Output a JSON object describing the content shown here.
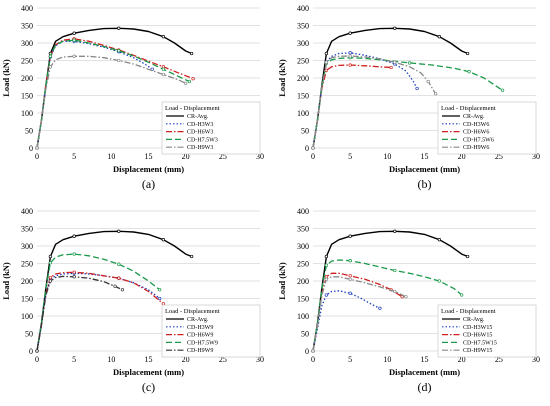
{
  "chart_data": [
    {
      "type": "line",
      "panel_label": "(a)",
      "xlabel": "Displacement (mm)",
      "ylabel": "Load (kN)",
      "xlim": [
        0,
        30
      ],
      "ylim": [
        0,
        400
      ],
      "xticks": [
        "0",
        "5",
        "10",
        "15",
        "20",
        "25",
        "30"
      ],
      "yticks": [
        "0",
        "50",
        "100",
        "150",
        "200",
        "250",
        "300",
        "350",
        "400"
      ],
      "legend_title": "Load - Displacement",
      "legend_position": "lower-right",
      "grid": "horizontal",
      "series": [
        {
          "name": "CR-Avg.",
          "color": "#000000",
          "dash": "solid",
          "x": [
            0,
            0.6,
            1.2,
            1.8,
            2.5,
            3.5,
            5,
            7,
            9,
            11,
            13,
            15,
            17,
            18.5,
            20,
            20.8
          ],
          "y": [
            0,
            80,
            180,
            270,
            305,
            318,
            328,
            336,
            341,
            342,
            340,
            333,
            318,
            300,
            277,
            270
          ]
        },
        {
          "name": "CD-H3W3",
          "color": "#1f3fbf",
          "dash": "dot",
          "x": [
            0,
            0.6,
            1.2,
            1.8,
            2.5,
            3.5,
            5,
            7,
            9,
            11,
            13,
            14.5,
            15.5
          ],
          "y": [
            0,
            80,
            180,
            260,
            292,
            305,
            305,
            298,
            288,
            275,
            258,
            240,
            225
          ]
        },
        {
          "name": "CD-H6W3",
          "color": "#d02020",
          "dash": "dashdot",
          "x": [
            0,
            0.6,
            1.2,
            1.8,
            2.5,
            3.5,
            5,
            7,
            9,
            11,
            13,
            15,
            17,
            19,
            21
          ],
          "y": [
            0,
            80,
            180,
            262,
            295,
            308,
            312,
            305,
            293,
            280,
            265,
            248,
            232,
            215,
            198
          ]
        },
        {
          "name": "CD-H7.5W3",
          "color": "#1a9a4a",
          "dash": "dash",
          "x": [
            0,
            0.6,
            1.2,
            1.8,
            2.5,
            3.5,
            5,
            7,
            9,
            11,
            13,
            15,
            17,
            19,
            20.5
          ],
          "y": [
            0,
            80,
            180,
            262,
            295,
            305,
            308,
            300,
            290,
            278,
            263,
            245,
            225,
            205,
            190
          ]
        },
        {
          "name": "CD-H9W3",
          "color": "#888888",
          "dash": "dashdot",
          "x": [
            0,
            0.6,
            1.2,
            1.8,
            2.5,
            3.5,
            5,
            7,
            9,
            11,
            13,
            15,
            17,
            19,
            20
          ],
          "y": [
            0,
            80,
            170,
            232,
            252,
            260,
            262,
            262,
            258,
            250,
            240,
            225,
            210,
            195,
            185
          ]
        }
      ]
    },
    {
      "type": "line",
      "panel_label": "(b)",
      "xlabel": "Displacement (mm)",
      "ylabel": "Load (kN)",
      "xlim": [
        0,
        30
      ],
      "ylim": [
        0,
        400
      ],
      "xticks": [
        "0",
        "5",
        "10",
        "15",
        "20",
        "25",
        "30"
      ],
      "yticks": [
        "0",
        "50",
        "100",
        "150",
        "200",
        "250",
        "300",
        "350",
        "400"
      ],
      "legend_title": "Load - Displacement",
      "legend_position": "lower-right",
      "grid": "horizontal",
      "series": [
        {
          "name": "CR-Avg.",
          "color": "#000000",
          "dash": "solid",
          "x": [
            0,
            0.6,
            1.2,
            1.8,
            2.5,
            3.5,
            5,
            7,
            9,
            11,
            13,
            15,
            17,
            18.5,
            20,
            20.8
          ],
          "y": [
            0,
            80,
            180,
            270,
            305,
            318,
            328,
            336,
            341,
            342,
            340,
            333,
            318,
            300,
            277,
            270
          ]
        },
        {
          "name": "CD-H3W6",
          "color": "#1f3fbf",
          "dash": "dot",
          "x": [
            0,
            0.6,
            1.2,
            1.8,
            2.5,
            3.5,
            5,
            7,
            9,
            11,
            12.5,
            13.5,
            14
          ],
          "y": [
            0,
            80,
            175,
            245,
            262,
            270,
            272,
            265,
            255,
            240,
            220,
            190,
            170
          ]
        },
        {
          "name": "CD-H6W6",
          "color": "#d02020",
          "dash": "dashdot",
          "x": [
            0,
            0.6,
            1.2,
            1.8,
            2.5,
            3.5,
            5,
            7,
            9,
            10.5
          ],
          "y": [
            0,
            80,
            170,
            222,
            232,
            236,
            237,
            235,
            232,
            230
          ]
        },
        {
          "name": "CD-H7.5W6",
          "color": "#1a9a4a",
          "dash": "dash",
          "x": [
            0,
            0.6,
            1.2,
            1.8,
            2.5,
            3.5,
            5,
            7,
            10,
            13,
            16,
            19,
            21,
            23,
            25.5
          ],
          "y": [
            0,
            80,
            175,
            242,
            252,
            256,
            258,
            256,
            250,
            243,
            237,
            228,
            218,
            200,
            165
          ]
        },
        {
          "name": "CD-H9W6",
          "color": "#888888",
          "dash": "dashdot",
          "x": [
            0,
            0.6,
            1.2,
            1.8,
            2.5,
            3.5,
            5,
            7,
            9,
            11,
            13,
            14.5,
            15.5,
            16.5
          ],
          "y": [
            0,
            80,
            175,
            245,
            258,
            262,
            263,
            260,
            255,
            245,
            232,
            215,
            190,
            155
          ]
        }
      ]
    },
    {
      "type": "line",
      "panel_label": "(c)",
      "xlabel": "Displacement (mm)",
      "ylabel": "Load (kN)",
      "xlim": [
        0,
        30
      ],
      "ylim": [
        0,
        400
      ],
      "xticks": [
        "0",
        "5",
        "10",
        "15",
        "20",
        "25",
        "30"
      ],
      "yticks": [
        "0",
        "50",
        "100",
        "150",
        "200",
        "250",
        "300",
        "350",
        "400"
      ],
      "legend_title": "Load - Displacement",
      "legend_position": "lower-right",
      "grid": "horizontal",
      "series": [
        {
          "name": "CR-Avg.",
          "color": "#000000",
          "dash": "solid",
          "x": [
            0,
            0.6,
            1.2,
            1.8,
            2.5,
            3.5,
            5,
            7,
            9,
            11,
            13,
            15,
            17,
            18.5,
            20,
            20.8
          ],
          "y": [
            0,
            80,
            180,
            270,
            305,
            318,
            328,
            336,
            341,
            342,
            340,
            333,
            318,
            300,
            277,
            270
          ]
        },
        {
          "name": "CD-H3W9",
          "color": "#1f3fbf",
          "dash": "dot",
          "x": [
            0,
            0.6,
            1.2,
            1.8,
            2.5,
            3.5,
            5,
            7,
            9,
            11,
            13,
            15,
            16.5
          ],
          "y": [
            0,
            75,
            165,
            205,
            215,
            220,
            222,
            220,
            215,
            208,
            195,
            175,
            150
          ]
        },
        {
          "name": "CD-H6W9",
          "color": "#d02020",
          "dash": "dashdot",
          "x": [
            0,
            0.6,
            1.2,
            1.8,
            2.5,
            3.5,
            5,
            7,
            9,
            11,
            13,
            15,
            17
          ],
          "y": [
            0,
            75,
            165,
            210,
            220,
            224,
            225,
            222,
            215,
            208,
            195,
            170,
            135
          ]
        },
        {
          "name": "CD-H7.5W9",
          "color": "#1a9a4a",
          "dash": "dash",
          "x": [
            0,
            0.6,
            1.2,
            1.8,
            2.5,
            3.5,
            5,
            7,
            9,
            11,
            13,
            15,
            16.5
          ],
          "y": [
            0,
            80,
            180,
            252,
            268,
            275,
            277,
            272,
            262,
            248,
            228,
            200,
            175
          ]
        },
        {
          "name": "CD-H9W9",
          "color": "#333333",
          "dash": "dashdot",
          "x": [
            0,
            0.6,
            1.2,
            1.8,
            2.5,
            3.5,
            5,
            7,
            9,
            10.5,
            11.5
          ],
          "y": [
            0,
            75,
            160,
            200,
            210,
            213,
            212,
            208,
            198,
            185,
            175
          ]
        }
      ]
    },
    {
      "type": "line",
      "panel_label": "(d)",
      "xlabel": "Displacement (mm)",
      "ylabel": "Load (kN)",
      "xlim": [
        0,
        30
      ],
      "ylim": [
        0,
        400
      ],
      "xticks": [
        "0",
        "5",
        "10",
        "15",
        "20",
        "25",
        "30"
      ],
      "yticks": [
        "0",
        "50",
        "100",
        "150",
        "200",
        "250",
        "300",
        "350",
        "400"
      ],
      "legend_title": "Load - Displacement",
      "legend_position": "lower-right",
      "grid": "horizontal",
      "series": [
        {
          "name": "CR-Avg.",
          "color": "#000000",
          "dash": "solid",
          "x": [
            0,
            0.6,
            1.2,
            1.8,
            2.5,
            3.5,
            5,
            7,
            9,
            11,
            13,
            15,
            17,
            18.5,
            20,
            20.8
          ],
          "y": [
            0,
            80,
            180,
            270,
            305,
            318,
            328,
            336,
            341,
            342,
            340,
            333,
            318,
            300,
            277,
            270
          ]
        },
        {
          "name": "CD-H3W15",
          "color": "#1f3fbf",
          "dash": "dot",
          "x": [
            0,
            0.6,
            1.2,
            1.8,
            2.5,
            3.5,
            5,
            6.5,
            8,
            9
          ],
          "y": [
            0,
            65,
            130,
            160,
            170,
            172,
            165,
            150,
            132,
            122
          ]
        },
        {
          "name": "CD-H6W15",
          "color": "#d02020",
          "dash": "dashdot",
          "x": [
            0,
            0.6,
            1.2,
            1.8,
            2.5,
            3.5,
            5,
            7,
            9,
            10.5,
            12
          ],
          "y": [
            0,
            75,
            165,
            212,
            222,
            222,
            215,
            205,
            190,
            175,
            155
          ]
        },
        {
          "name": "CD-H7.5W15",
          "color": "#1a9a4a",
          "dash": "dash",
          "x": [
            0,
            0.6,
            1.2,
            1.8,
            2.5,
            3.5,
            5,
            7,
            9,
            11,
            13,
            15,
            17,
            19,
            20
          ],
          "y": [
            0,
            80,
            180,
            245,
            257,
            260,
            258,
            250,
            240,
            230,
            222,
            212,
            200,
            178,
            160
          ]
        },
        {
          "name": "CD-H9W15",
          "color": "#888888",
          "dash": "dashdot",
          "x": [
            0,
            0.6,
            1.2,
            1.8,
            2.5,
            3.5,
            5,
            7,
            9,
            11,
            12.5
          ],
          "y": [
            0,
            75,
            160,
            205,
            212,
            212,
            205,
            195,
            183,
            170,
            155
          ]
        }
      ]
    }
  ]
}
